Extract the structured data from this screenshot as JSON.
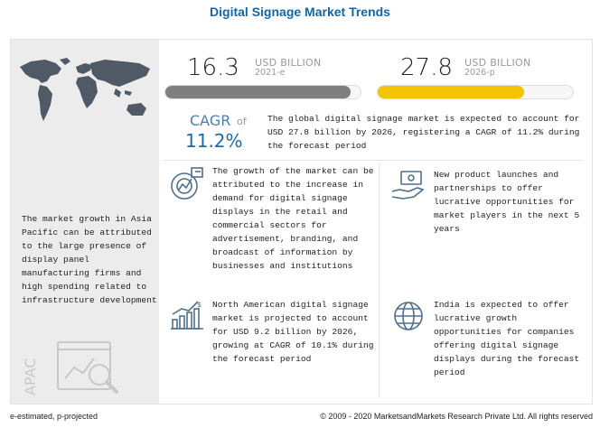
{
  "title": "Digital Signage Market Trends",
  "left_panel": {
    "text": "The market growth in Asia Pacific can be attributed to the large presence of display panel manufacturing firms and high spending related to infrastructure development",
    "region_label": "APAC",
    "map_icon": "world-map-icon",
    "region_icon": "chart-magnifier-icon"
  },
  "metrics": [
    {
      "value": "16.3",
      "unit": "USD BILLION",
      "year": "2021-e",
      "fill_fraction": 0.95,
      "color": "#7f7f7f"
    },
    {
      "value": "27.8",
      "unit": "USD BILLION",
      "year": "2026-p",
      "fill_fraction": 0.75,
      "color": "#f5c400"
    }
  ],
  "cagr": {
    "label": "CAGR",
    "of": "of",
    "value": "11.2%",
    "text": "The global digital signage market is expected to account for USD 27.8 billion by 2026, registering a CAGR of 11.2% during the forecast period"
  },
  "cards": [
    {
      "icon": "gear-chart-icon",
      "text": "The growth of the market can be attributed to the increase in demand for digital signage displays in the retail and commercial sectors for advertisement, branding, and broadcast of information by businesses and institutions"
    },
    {
      "icon": "money-hand-icon",
      "text": "New product launches and partnerships to offer lucrative opportunities for market players in the next 5 years"
    },
    {
      "icon": "dollar-growth-chart-icon",
      "text": "North American digital signage market is projected to account for USD 9.2 billion by 2026, growing at CAGR of 10.1% during the forecast period"
    },
    {
      "icon": "globe-icon",
      "text": "India is expected to offer lucrative growth opportunities for companies offering digital signage displays during the forecast period"
    }
  ],
  "footer": {
    "left": "e-estimated, p-projected",
    "right": "© 2009 - 2020 MarketsandMarkets Research Private Ltd. All rights reserved"
  },
  "colors": {
    "title": "#1565a6",
    "accent_blue": "#1c6aa8",
    "bar_grey": "#7f7f7f",
    "bar_yellow": "#f5c400"
  }
}
